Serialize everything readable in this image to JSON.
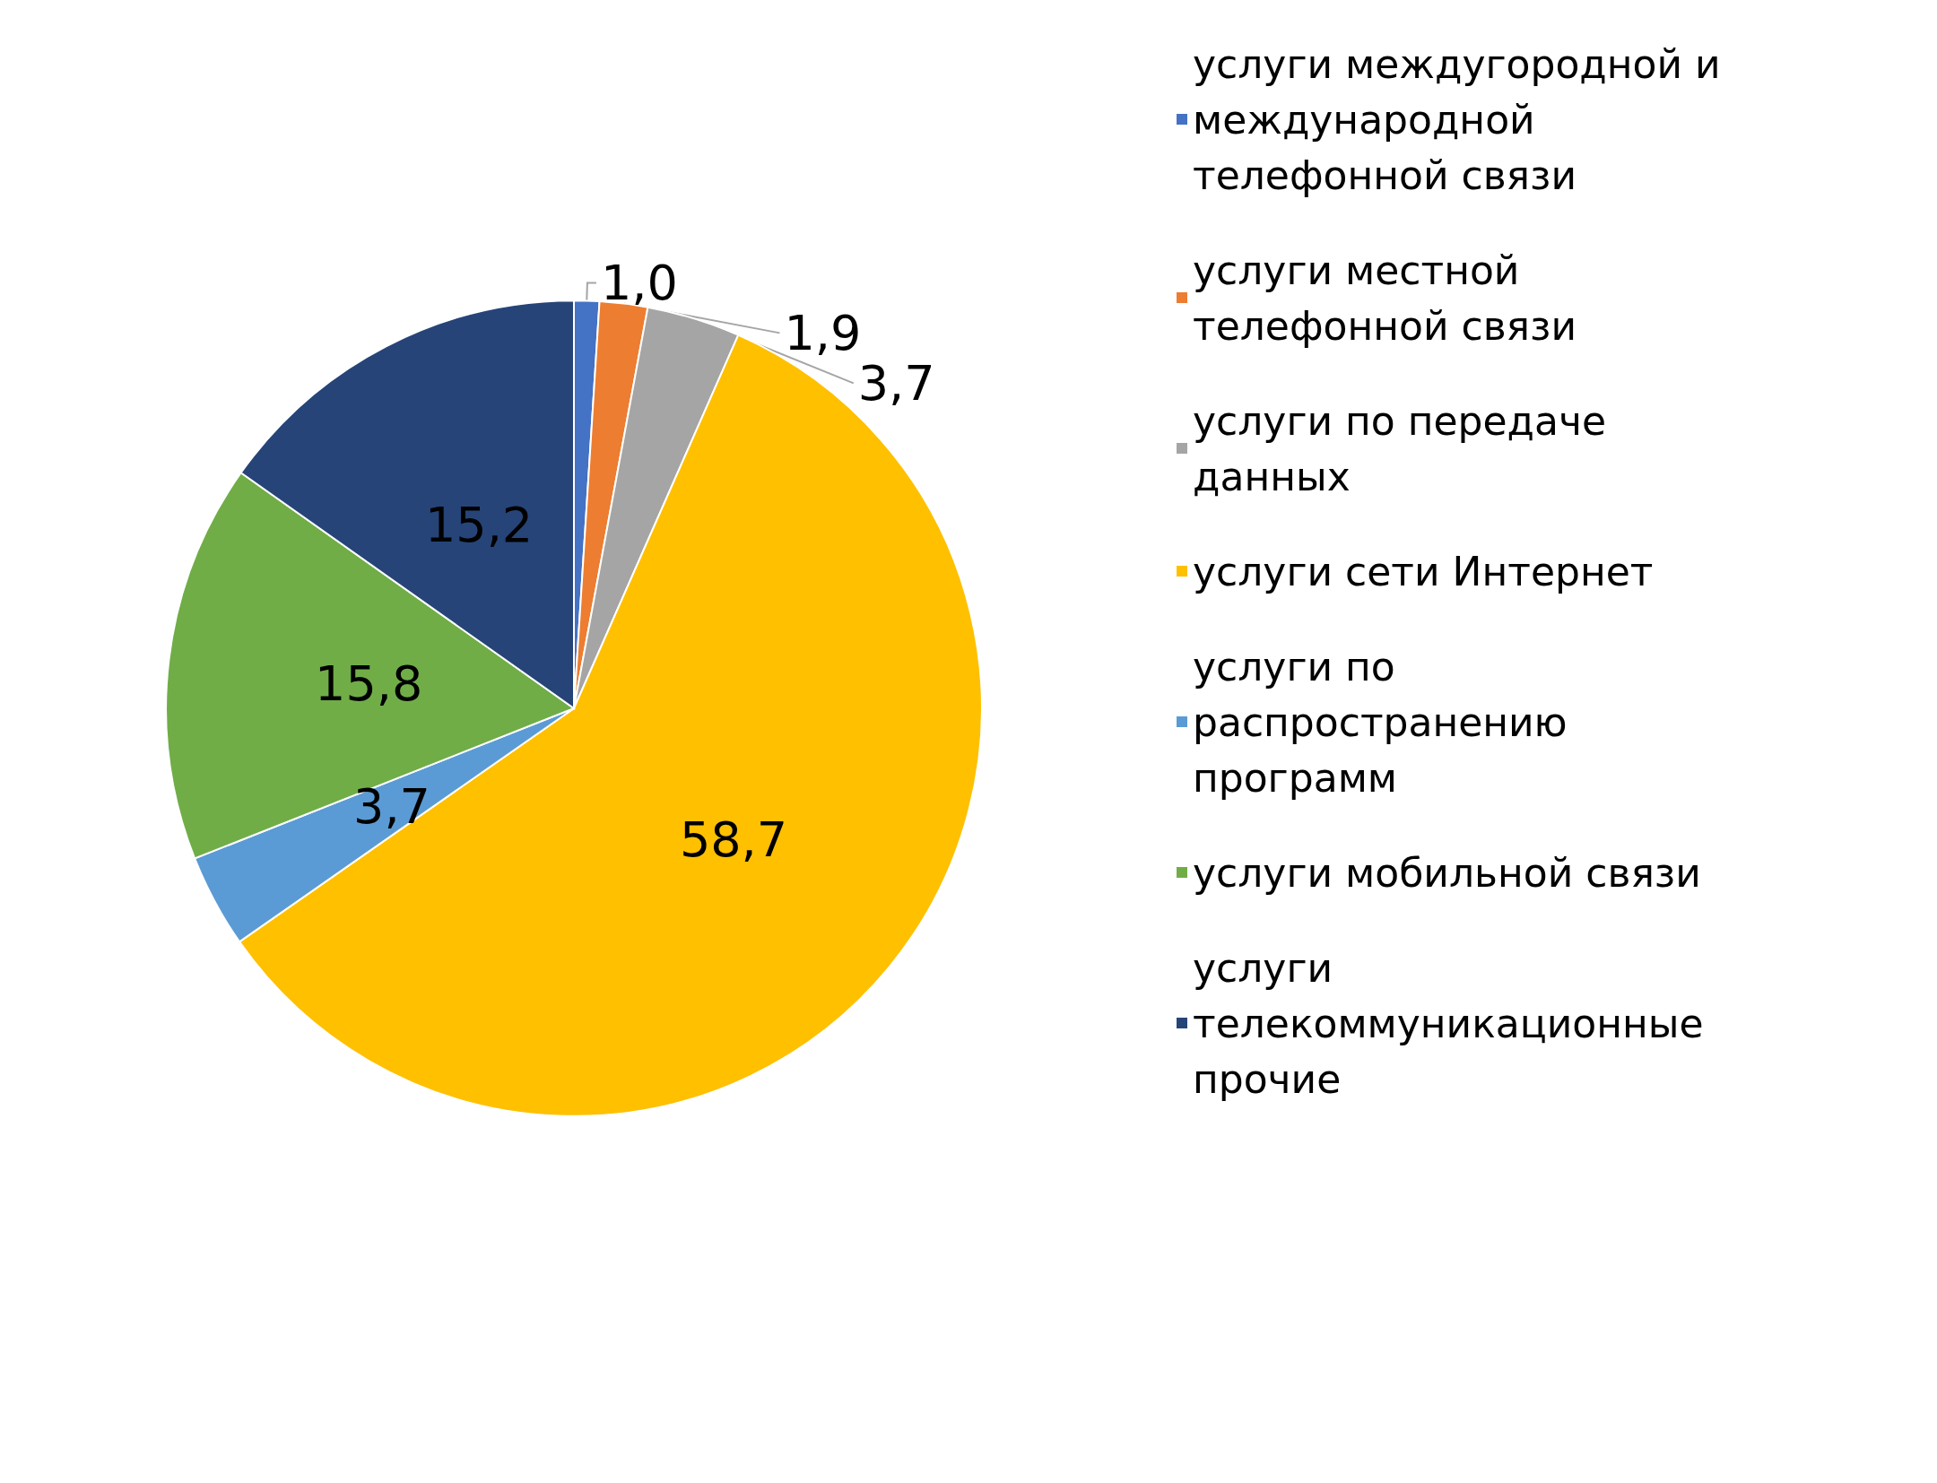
{
  "chart_data": {
    "type": "pie",
    "categories": [
      "услуги междугородной и международной телефонной связи",
      "услуги местной телефонной связи",
      "услуги по передаче данных",
      "услуги сети Интернет",
      "услуги по распространению программ",
      "услуги мобильной связи",
      "услуги телекоммуникационные прочие"
    ],
    "values": [
      1.0,
      1.9,
      3.7,
      58.7,
      3.7,
      15.8,
      15.2
    ],
    "value_labels": [
      "1,0",
      "1,9",
      "3,7",
      "58,7",
      "3,7",
      "15,8",
      "15,2"
    ],
    "colors": [
      "#4472c4",
      "#ed7d31",
      "#a5a5a5",
      "#ffc000",
      "#5b9bd5",
      "#70ad47",
      "#264478"
    ],
    "legend": "right"
  }
}
